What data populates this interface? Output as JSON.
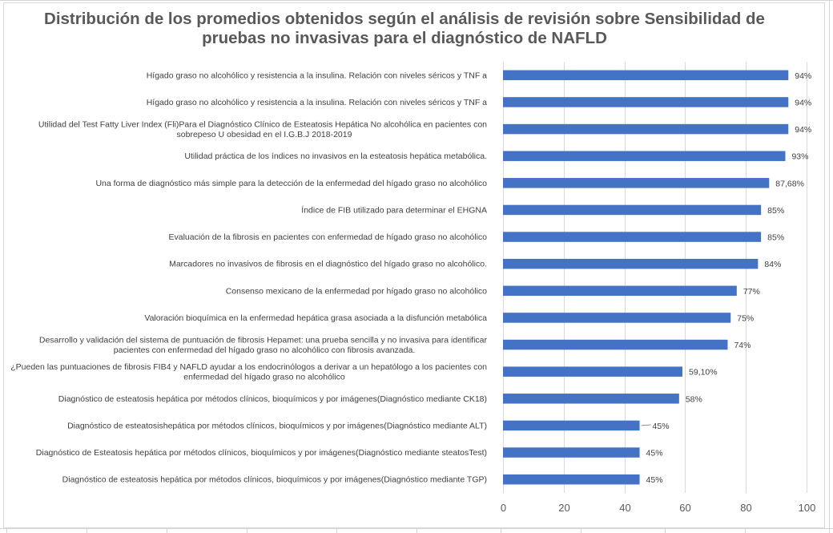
{
  "chart_data": {
    "type": "bar",
    "orientation": "horizontal",
    "title": "Distribución de los promedios obtenidos según el análisis de revisión sobre Sensibilidad de pruebas no invasivas para el diagnóstico de NAFLD",
    "xlabel": "",
    "ylabel": "",
    "xlim": [
      0,
      100
    ],
    "x_ticks": [
      "0",
      "20",
      "40",
      "60",
      "80",
      "100"
    ],
    "grid": "vertical",
    "legend": "none",
    "bar_color": "#4472c4",
    "categories": [
      [
        "Hígado graso no alcohólico y resistencia a la insulina. Relación con niveles séricos y TNF a"
      ],
      [
        "Hígado graso no alcohólico y resistencia a la insulina. Relación con niveles séricos y TNF a"
      ],
      [
        "Utilidad del Test Fatty Liver Index (Fli)Para el Diagnóstico Clínico de Esteatosis Hepática No alcohólica en pacientes con",
        "sobrepeso U obesidad en el I.G.B.J 2018-2019"
      ],
      [
        "Utilidad práctica de los índices no invasivos en la esteatosis hepática  metabólica."
      ],
      [
        "Una forma de diagnóstico más  simple para la detección de la enfermedad del hígado graso no alcohólico"
      ],
      [
        "Índice de FIB utilizado para determinar el EHGNA"
      ],
      [
        "Evaluación de la fibrosis en pacientes con enfermedad de hígado graso no alcohólico"
      ],
      [
        "Marcadores no invasivos de fibrosis en el diagnóstico del hígado graso no alcohólico."
      ],
      [
        "Consenso mexicano de la enfermedad por hígado graso no alcohólico"
      ],
      [
        "Valoración bioquímica en la enfermedad hepática grasa asociada a la disfunción metabólica"
      ],
      [
        "Desarrollo y validación del sistema de puntuación de fibrosis Hepamet: una prueba sencilla y no invasiva para identificar",
        "pacientes con enfermedad del hígado graso no alcohólico con fibrosis avanzada."
      ],
      [
        "¿Pueden las puntuaciones de fibrosis FIB4 y NAFLD ayudar a los endocrinólogos a derivar a un hepatólogo a los pacientes con",
        "enfermedad del hígado graso no alcohólico"
      ],
      [
        "Diagnóstico de esteatosis hepática por métodos clínicos, bioquímicos y por imágenes(Diagnóstico mediante CK18)"
      ],
      [
        "Diagnóstico de esteatosishepática por métodos clínicos, bioquímicos y por imágenes(Diagnóstico mediante ALT)"
      ],
      [
        "Diagnóstico de Esteatosis hepática por métodos clínicos, bioquímicos y por imágenes(Diagnóstico mediante steatosTest)"
      ],
      [
        "Diagnóstico de esteatosis hepática por métodos clínicos, bioquímicos y por imágenes(Diagnóstico mediante TGP)"
      ]
    ],
    "values": [
      94,
      94,
      94,
      93,
      87.68,
      85,
      85,
      84,
      77,
      75,
      74,
      59.1,
      58,
      45,
      45,
      45
    ],
    "data_labels": [
      "94%",
      "94%",
      "94%",
      "93%",
      "87,68%",
      "85%",
      "85%",
      "84%",
      "77%",
      "75%",
      "74%",
      "59,10%",
      "58%",
      "45%",
      "45%",
      "45%"
    ]
  }
}
